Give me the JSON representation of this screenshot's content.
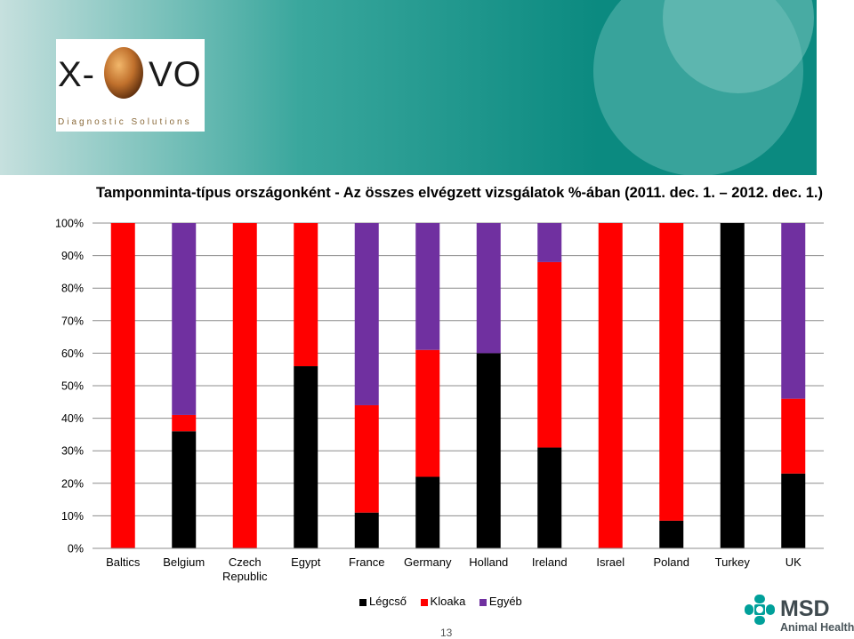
{
  "header": {
    "logo": {
      "letters_left": "X-",
      "letters_right": "VO",
      "tagline": "Diagnostic Solutions"
    }
  },
  "colors": {
    "banner_teal": "#0d8a80",
    "banner_light": "#b7d8d6",
    "legcso": "#000000",
    "kloaka": "#ff0000",
    "egyeb": "#7030a0"
  },
  "chart_data": {
    "type": "bar",
    "stacked": true,
    "title": "Tamponminta-típus országonként - Az összes elvégzett vizsgálatok %-ában (2011. dec. 1. – 2012. dec. 1.)",
    "categories": [
      "Baltics",
      "Belgium",
      "Czech Republic",
      "Egypt",
      "France",
      "Germany",
      "Holland",
      "Ireland",
      "Israel",
      "Poland",
      "Turkey",
      "UK"
    ],
    "category_lines": [
      [
        "Baltics"
      ],
      [
        "Belgium"
      ],
      [
        "Czech",
        "Republic"
      ],
      [
        "Egypt"
      ],
      [
        "France"
      ],
      [
        "Germany"
      ],
      [
        "Holland"
      ],
      [
        "Ireland"
      ],
      [
        "Israel"
      ],
      [
        "Poland"
      ],
      [
        "Turkey"
      ],
      [
        "UK"
      ]
    ],
    "series": [
      {
        "name": "Légcső",
        "color": "#000000",
        "values": [
          0,
          36,
          0,
          56,
          11,
          22,
          60,
          31,
          0,
          8.5,
          100,
          23
        ]
      },
      {
        "name": "Kloaka",
        "color": "#ff0000",
        "values": [
          100,
          5,
          100,
          44,
          33,
          39,
          0,
          57,
          100,
          91.5,
          0,
          23
        ]
      },
      {
        "name": "Egyéb",
        "color": "#7030a0",
        "values": [
          0,
          59,
          0,
          0,
          56,
          39,
          40,
          12,
          0,
          0,
          0,
          54
        ]
      }
    ],
    "ylim": [
      0,
      100
    ],
    "yticks": [
      "0%",
      "10%",
      "20%",
      "30%",
      "40%",
      "50%",
      "60%",
      "70%",
      "80%",
      "90%",
      "100%"
    ],
    "xlabel": "",
    "ylabel": "",
    "grid": true,
    "legend_position": "bottom"
  },
  "footer": {
    "page_number": "13",
    "brand": {
      "name": "MSD",
      "subtitle": "Animal Health"
    }
  }
}
